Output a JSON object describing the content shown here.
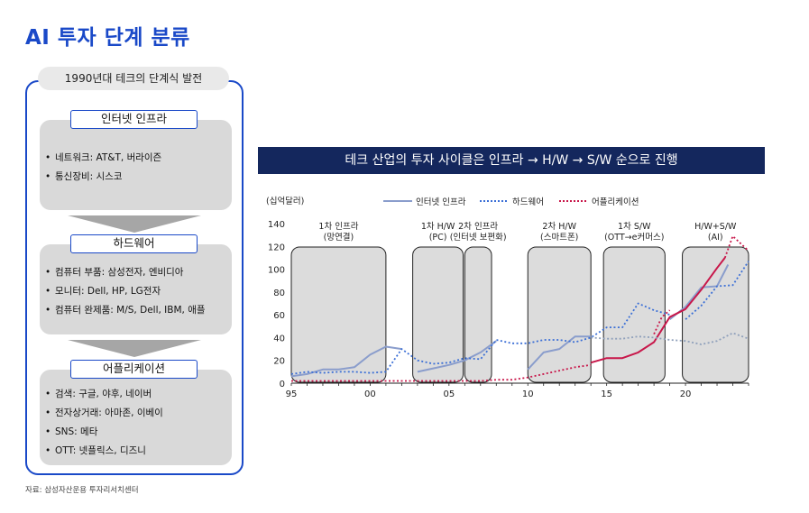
{
  "title": "AI 투자 단계 분류",
  "left": {
    "header": "1990년대 테크의 단계식 발전",
    "stages": [
      {
        "label": "인터넷 인프라",
        "items": [
          "네트워크: AT&T, 버라이즌",
          "통신장비: 시스코"
        ]
      },
      {
        "label": "하드웨어",
        "items": [
          "컴퓨터 부품: 삼성전자, 엔비디아",
          "모니터: Dell, HP, LG전자",
          "컴퓨터 완제품: M/S, Dell, IBM, 애플"
        ]
      },
      {
        "label": "어플리케이션",
        "items": [
          "검색: 구글, 야후, 네이버",
          "전자상거래: 아마존, 이베이",
          "SNS: 메타",
          "OTT: 넷플릭스, 디즈니"
        ]
      }
    ]
  },
  "source": "자료: 삼성자산운용 투자리서치센터",
  "right_title": "테크 산업의 투자 사이클은 인프라 → H/W → S/W 순으로 진행",
  "chart_data": {
    "type": "line",
    "unit_label": "(십억달러)",
    "x": [
      1995,
      1996,
      1997,
      1998,
      1999,
      2000,
      2001,
      2002,
      2003,
      2004,
      2005,
      2006,
      2007,
      2008,
      2009,
      2010,
      2011,
      2012,
      2013,
      2014,
      2015,
      2016,
      2017,
      2018,
      2019,
      2020,
      2021,
      2022,
      2023,
      2024
    ],
    "x_tick_labels": [
      {
        "x": 1995,
        "label": "95"
      },
      {
        "x": 2000,
        "label": "00"
      },
      {
        "x": 2005,
        "label": "05"
      },
      {
        "x": 2010,
        "label": "10"
      },
      {
        "x": 2015,
        "label": "15"
      },
      {
        "x": 2020,
        "label": "20"
      }
    ],
    "ylim": [
      0,
      140
    ],
    "yticks": [
      0,
      20,
      40,
      60,
      80,
      100,
      120,
      140
    ],
    "series": [
      {
        "name": "인터넷 인프라",
        "color": "#8a9dcc",
        "style": "solid",
        "segments": [
          {
            "points": [
              [
                1995,
                6
              ],
              [
                1996,
                8
              ],
              [
                1997,
                12
              ],
              [
                1998,
                12
              ],
              [
                1999,
                14
              ],
              [
                2000,
                25
              ],
              [
                2001,
                32
              ],
              [
                2002,
                30
              ]
            ]
          },
          {
            "points": [
              [
                2003,
                10
              ],
              [
                2004,
                13
              ],
              [
                2005,
                16
              ],
              [
                2006,
                20
              ],
              [
                2007,
                27
              ],
              [
                2008,
                37
              ]
            ]
          },
          {
            "points": [
              [
                2010,
                12
              ],
              [
                2011,
                27
              ],
              [
                2012,
                30
              ],
              [
                2013,
                41
              ],
              [
                2014,
                41
              ]
            ]
          },
          {
            "points": [
              [
                2019,
                56
              ],
              [
                2020,
                67
              ],
              [
                2021,
                84
              ],
              [
                2022,
                85
              ],
              [
                2022.7,
                104
              ]
            ]
          }
        ]
      },
      {
        "name": "하드웨어",
        "color": "#3b6fd6",
        "style": "dotted",
        "segments": [
          {
            "points": [
              [
                1995,
                8
              ],
              [
                1996,
                10
              ],
              [
                1997,
                9
              ],
              [
                1998,
                10
              ],
              [
                1999,
                10
              ],
              [
                2000,
                9
              ],
              [
                2001,
                10
              ],
              [
                2002,
                30
              ],
              [
                2003,
                20
              ],
              [
                2004,
                17
              ],
              [
                2005,
                18
              ],
              [
                2006,
                22
              ],
              [
                2007,
                21
              ],
              [
                2008,
                38
              ],
              [
                2009,
                35
              ],
              [
                2010,
                35
              ],
              [
                2011,
                38
              ],
              [
                2012,
                38
              ],
              [
                2013,
                36
              ],
              [
                2014,
                40
              ],
              [
                2015,
                49
              ],
              [
                2016,
                49
              ],
              [
                2017,
                70
              ],
              [
                2018,
                64
              ],
              [
                2019,
                60
              ]
            ]
          },
          {
            "points": [
              [
                2020,
                56
              ],
              [
                2021,
                68
              ],
              [
                2022,
                85
              ],
              [
                2023,
                86
              ],
              [
                2024,
                107
              ]
            ]
          }
        ]
      },
      {
        "name": "어플리케이션",
        "color": "#c8174a",
        "style": "dotted",
        "segments": [
          {
            "points": [
              [
                1995,
                2
              ],
              [
                1996,
                2
              ],
              [
                1997,
                2
              ],
              [
                1998,
                2
              ],
              [
                1999,
                2
              ],
              [
                2000,
                2
              ],
              [
                2001,
                2
              ],
              [
                2002,
                2
              ],
              [
                2003,
                2
              ],
              [
                2004,
                2
              ],
              [
                2005,
                2
              ],
              [
                2006,
                2
              ],
              [
                2007,
                2
              ],
              [
                2008,
                3
              ],
              [
                2009,
                3
              ],
              [
                2010,
                5
              ],
              [
                2011,
                8
              ],
              [
                2012,
                11
              ],
              [
                2013,
                14
              ],
              [
                2014,
                16
              ]
            ]
          },
          {
            "points": [
              [
                2022.5,
                110
              ],
              [
                2023,
                129
              ],
              [
                2024,
                116
              ]
            ]
          },
          {
            "points": [
              [
                2018,
                43
              ],
              [
                2018.5,
                58
              ],
              [
                2019,
                64
              ]
            ]
          }
        ]
      },
      {
        "name": "어플리케이션",
        "color": "#c8174a",
        "style": "solid",
        "segments": [
          {
            "points": [
              [
                2014,
                18
              ],
              [
                2015,
                22
              ],
              [
                2016,
                22
              ],
              [
                2017,
                27
              ],
              [
                2018,
                36
              ],
              [
                2019,
                58
              ],
              [
                2020,
                65
              ],
              [
                2021,
                82
              ],
              [
                2022,
                101
              ],
              [
                2022.5,
                110
              ]
            ]
          }
        ]
      },
      {
        "name": "하드웨어",
        "color": "#8fa0bb",
        "style": "dotted",
        "segments": [
          {
            "points": [
              [
                2014,
                40
              ],
              [
                2015,
                39
              ],
              [
                2016,
                39
              ],
              [
                2017,
                41
              ],
              [
                2018,
                40
              ],
              [
                2019,
                38
              ],
              [
                2020,
                37
              ],
              [
                2021,
                34
              ],
              [
                2022,
                37
              ],
              [
                2023,
                44
              ],
              [
                2024,
                39
              ]
            ]
          }
        ]
      }
    ],
    "phases": [
      {
        "label": "1차 인프라\n(망연결)",
        "x_start": 1995,
        "x_end": 2001
      },
      {
        "label": "1차 H/W\n(PC)",
        "x_start": 2002.7,
        "x_end": 2005.9
      },
      {
        "label": "2차 인프라\n(인터넷 보편화)",
        "x_start": 2006,
        "x_end": 2007.7
      },
      {
        "label": "2차 H/W\n(스마트폰)",
        "x_start": 2010,
        "x_end": 2014
      },
      {
        "label": "1차 S/W\n(OTT→e커머스)",
        "x_start": 2014.8,
        "x_end": 2018.7
      },
      {
        "label": "H/W+S/W\n(AI)",
        "x_start": 2019.8,
        "x_end": 2024
      }
    ]
  },
  "legend": [
    {
      "label": "인터넷 인프라",
      "color": "#8a9dcc",
      "style": "solid"
    },
    {
      "label": "하드웨어",
      "color": "#3b6fd6",
      "style": "dotted"
    },
    {
      "label": "어플리케이션",
      "color": "#c8174a",
      "style": "dotted"
    }
  ]
}
